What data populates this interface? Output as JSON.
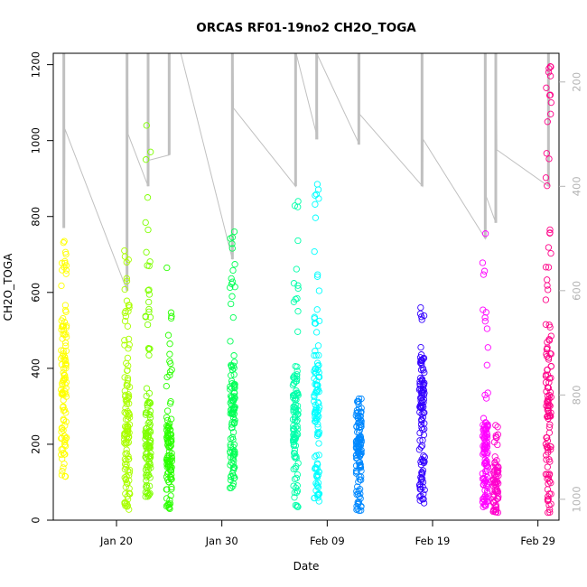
{
  "chart_data": {
    "type": "scatter",
    "title": "ORCAS RF01-19no2 CH2O_TOGA",
    "xlabel": "Date",
    "ylabel": "CH2O_TOGA",
    "xlim": [
      "2016-01-14",
      "2016-03-02"
    ],
    "ylim": [
      0,
      1230
    ],
    "y2lim": [
      1040,
      145
    ],
    "x_ticks": [
      {
        "date": "2016-01-20",
        "label": "Jan 20"
      },
      {
        "date": "2016-01-30",
        "label": "Jan 30"
      },
      {
        "date": "2016-02-09",
        "label": "Feb 09"
      },
      {
        "date": "2016-02-19",
        "label": "Feb 19"
      },
      {
        "date": "2016-02-29",
        "label": "Feb 29"
      }
    ],
    "y_ticks": [
      0,
      200,
      400,
      600,
      800,
      1000,
      1200
    ],
    "y2_ticks": [
      200,
      400,
      600,
      800,
      1000
    ],
    "series": [
      {
        "date": "2016-01-15",
        "color": "#ffff00",
        "min": 115,
        "max": 735,
        "median": 330,
        "count": 110,
        "outliers": []
      },
      {
        "date": "2016-01-21",
        "color": "#aaff00",
        "min": 28,
        "max": 710,
        "median": 200,
        "count": 120,
        "outliers": [
          560,
          550
        ]
      },
      {
        "date": "2016-01-23",
        "color": "#7fff00",
        "min": 62,
        "max": 850,
        "median": 190,
        "count": 110,
        "outliers": [
          1040,
          970,
          950
        ]
      },
      {
        "date": "2016-01-25",
        "color": "#2aff00",
        "min": 30,
        "max": 665,
        "median": 140,
        "count": 110,
        "outliers": []
      },
      {
        "date": "2016-01-31",
        "color": "#00ff55",
        "min": 85,
        "max": 760,
        "median": 250,
        "count": 110,
        "outliers": []
      },
      {
        "date": "2016-02-06",
        "color": "#00ffaa",
        "min": 35,
        "max": 840,
        "median": 210,
        "count": 110,
        "outliers": []
      },
      {
        "date": "2016-02-08",
        "color": "#00ffff",
        "min": 50,
        "max": 885,
        "median": 260,
        "count": 110,
        "outliers": []
      },
      {
        "date": "2016-02-12",
        "color": "#0088ff",
        "min": 25,
        "max": 320,
        "median": 170,
        "count": 120,
        "outliers": []
      },
      {
        "date": "2016-02-18",
        "color": "#3300ff",
        "min": 45,
        "max": 560,
        "median": 240,
        "count": 110,
        "outliers": []
      },
      {
        "date": "2016-02-24",
        "color": "#ff00ff",
        "min": 35,
        "max": 755,
        "median": 150,
        "count": 110,
        "outliers": []
      },
      {
        "date": "2016-02-25",
        "color": "#ff00cc",
        "min": 20,
        "max": 250,
        "median": 80,
        "count": 70,
        "outliers": []
      },
      {
        "date": "2016-03-01",
        "color": "#ff0088",
        "min": 20,
        "max": 1195,
        "median": 250,
        "count": 120,
        "outliers": [
          1190,
          1180,
          1170,
          1120,
          1100,
          1070
        ]
      }
    ],
    "altitude_track": {
      "color": "#c0c0c0",
      "points": [
        {
          "date": "2016-01-15",
          "value": 145
        },
        {
          "date": "2016-01-15",
          "value": 480
        },
        {
          "date": "2016-01-15",
          "value": 290
        },
        {
          "date": "2016-01-21",
          "value": 600
        },
        {
          "date": "2016-01-21",
          "value": 145
        },
        {
          "date": "2016-01-21",
          "value": 300
        },
        {
          "date": "2016-01-23",
          "value": 400
        },
        {
          "date": "2016-01-23",
          "value": 145
        },
        {
          "date": "2016-01-23",
          "value": 350
        },
        {
          "date": "2016-01-25",
          "value": 340
        },
        {
          "date": "2016-01-25",
          "value": 145
        },
        {
          "date": "2016-01-26",
          "value": 145
        },
        {
          "date": "2016-01-31",
          "value": 540
        },
        {
          "date": "2016-01-31",
          "value": 145
        },
        {
          "date": "2016-01-31",
          "value": 250
        },
        {
          "date": "2016-02-06",
          "value": 400
        },
        {
          "date": "2016-02-06",
          "value": 145
        },
        {
          "date": "2016-02-08",
          "value": 310
        },
        {
          "date": "2016-02-08",
          "value": 145
        },
        {
          "date": "2016-02-12",
          "value": 320
        },
        {
          "date": "2016-02-12",
          "value": 145
        },
        {
          "date": "2016-02-12",
          "value": 260
        },
        {
          "date": "2016-02-18",
          "value": 400
        },
        {
          "date": "2016-02-18",
          "value": 310
        },
        {
          "date": "2016-02-24",
          "value": 500
        },
        {
          "date": "2016-02-24",
          "value": 145
        },
        {
          "date": "2016-02-24",
          "value": 420
        },
        {
          "date": "2016-02-25",
          "value": 470
        },
        {
          "date": "2016-02-25",
          "value": 145
        },
        {
          "date": "2016-02-25",
          "value": 330
        },
        {
          "date": "2016-03-01",
          "value": 400
        },
        {
          "date": "2016-03-01",
          "value": 145
        }
      ]
    },
    "grid": false,
    "legend": "none"
  }
}
